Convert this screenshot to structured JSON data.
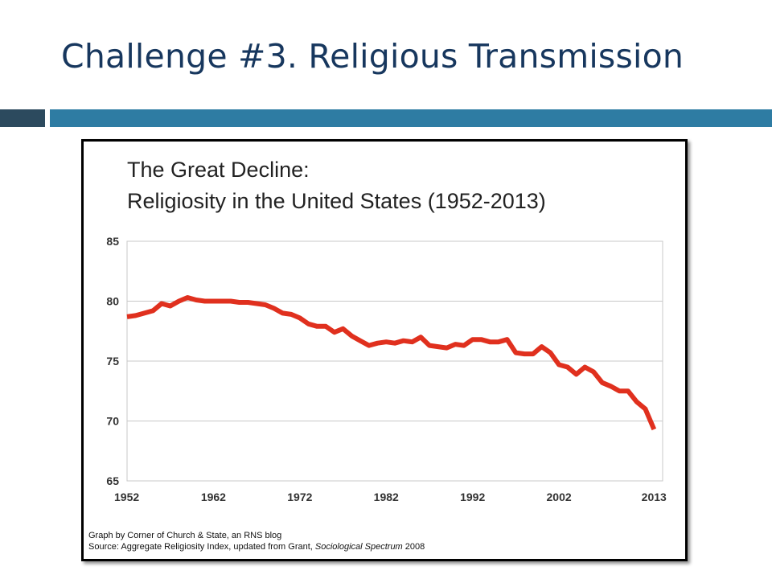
{
  "slide": {
    "title": "Challenge #3. Religious Transmission",
    "accent_dark": "#2c4a5e",
    "accent_light": "#2e7ca3",
    "title_color": "#17375e"
  },
  "chart_data": {
    "type": "line",
    "title": "The Great Decline:",
    "subtitle": "Religiosity in the United States (1952-2013)",
    "xlabel": "",
    "ylabel": "",
    "xlim": [
      1952,
      2014
    ],
    "ylim": [
      65,
      85
    ],
    "x_ticks": [
      1952,
      1962,
      1972,
      1982,
      1992,
      2002,
      2013
    ],
    "y_ticks": [
      65,
      70,
      75,
      80,
      85
    ],
    "grid": true,
    "line_color": "#e0301e",
    "x": [
      1952,
      1953,
      1954,
      1955,
      1956,
      1957,
      1958,
      1959,
      1960,
      1961,
      1962,
      1963,
      1964,
      1965,
      1966,
      1967,
      1968,
      1969,
      1970,
      1971,
      1972,
      1973,
      1974,
      1975,
      1976,
      1977,
      1978,
      1979,
      1980,
      1981,
      1982,
      1983,
      1984,
      1985,
      1986,
      1987,
      1988,
      1989,
      1990,
      1991,
      1992,
      1993,
      1994,
      1995,
      1996,
      1997,
      1998,
      1999,
      2000,
      2001,
      2002,
      2003,
      2004,
      2005,
      2006,
      2007,
      2008,
      2009,
      2010,
      2011,
      2012,
      2013
    ],
    "y": [
      78.7,
      78.8,
      79.0,
      79.2,
      79.8,
      79.6,
      80.0,
      80.3,
      80.1,
      80.0,
      80.0,
      80.0,
      80.0,
      79.9,
      79.9,
      79.8,
      79.7,
      79.4,
      79.0,
      78.9,
      78.6,
      78.1,
      77.9,
      77.9,
      77.4,
      77.7,
      77.1,
      76.7,
      76.3,
      76.5,
      76.6,
      76.5,
      76.7,
      76.6,
      77.0,
      76.3,
      76.2,
      76.1,
      76.4,
      76.3,
      76.8,
      76.8,
      76.6,
      76.6,
      76.8,
      75.7,
      75.6,
      75.6,
      76.2,
      75.7,
      74.7,
      74.5,
      73.9,
      74.5,
      74.1,
      73.2,
      72.9,
      72.5,
      72.5,
      71.6,
      71.0,
      69.3
    ],
    "source_lines": [
      {
        "parts": [
          {
            "text": "Graph by Corner of Church & State, an RNS blog",
            "italic": false
          }
        ]
      },
      {
        "parts": [
          {
            "text": "Source: Aggregate Religiosity Index, updated from Grant, ",
            "italic": false
          },
          {
            "text": "Sociological Spectrum",
            "italic": true
          },
          {
            "text": " 2008",
            "italic": false
          }
        ]
      }
    ]
  }
}
